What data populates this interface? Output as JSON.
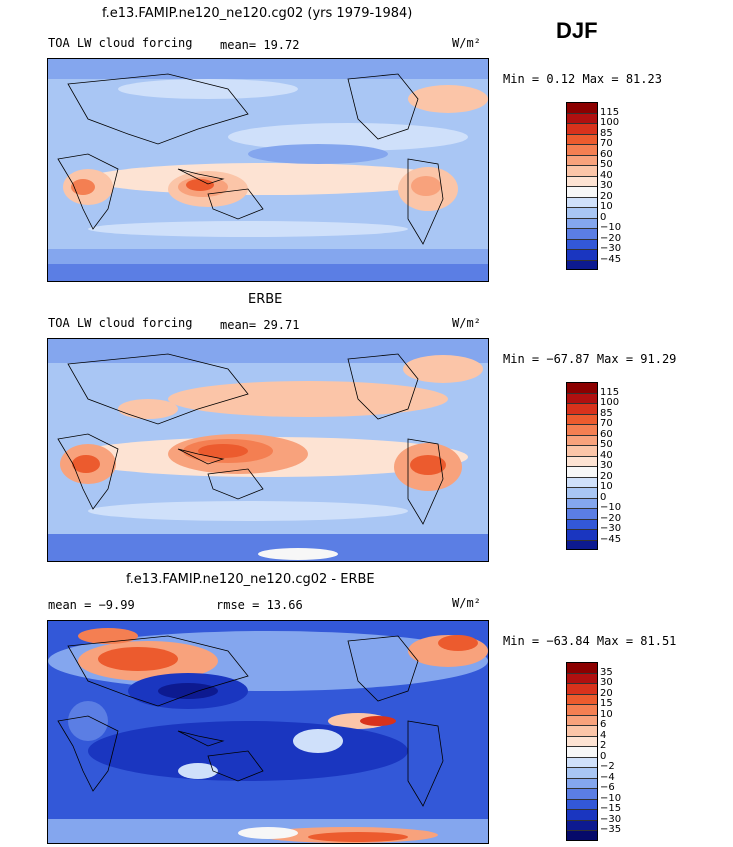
{
  "header": {
    "season": "DJF"
  },
  "panels": [
    {
      "id": "model",
      "title": "f.e13.FAMIP.ne120_ne120.cg02 (yrs 1979-1984)",
      "left_label": "TOA LW cloud forcing",
      "stat1": "mean=   19.72",
      "stat2": "",
      "units": "W/m²",
      "minmax": "Min =   0.12 Max =  81.23",
      "colorbar": {
        "labels": [
          "115",
          "100",
          "85",
          "70",
          "60",
          "50",
          "40",
          "30",
          "20",
          "10",
          "0",
          "−10",
          "−20",
          "−30",
          "−45"
        ],
        "colors": [
          "#8b0000",
          "#b01010",
          "#d8321c",
          "#ec5b2e",
          "#f47f52",
          "#f8a27c",
          "#fbc5a8",
          "#fde3d3",
          "#f7f7f7",
          "#cfe0fa",
          "#a9c6f4",
          "#84a6ee",
          "#5b7ee4",
          "#3358d8",
          "#1a36c0",
          "#0d1a90"
        ]
      }
    },
    {
      "id": "obs",
      "title": "ERBE",
      "left_label": "TOA LW cloud forcing",
      "stat1": "mean=   29.71",
      "stat2": "",
      "units": "W/m²",
      "minmax": "Min = −67.87 Max =  91.29",
      "colorbar": {
        "labels": [
          "115",
          "100",
          "85",
          "70",
          "60",
          "50",
          "40",
          "30",
          "20",
          "10",
          "0",
          "−10",
          "−20",
          "−30",
          "−45"
        ],
        "colors": [
          "#8b0000",
          "#b01010",
          "#d8321c",
          "#ec5b2e",
          "#f47f52",
          "#f8a27c",
          "#fbc5a8",
          "#fde3d3",
          "#f7f7f7",
          "#cfe0fa",
          "#a9c6f4",
          "#84a6ee",
          "#5b7ee4",
          "#3358d8",
          "#1a36c0",
          "#0d1a90"
        ]
      }
    },
    {
      "id": "diff",
      "title": "f.e13.FAMIP.ne120_ne120.cg02 - ERBE",
      "left_label": "mean =  −9.99",
      "stat1": "rmse =   13.66",
      "stat2": "",
      "units": "W/m²",
      "minmax": "Min = −63.84 Max =  81.51",
      "colorbar": {
        "labels": [
          "35",
          "30",
          "20",
          "15",
          "10",
          "6",
          "4",
          "2",
          "0",
          "−2",
          "−4",
          "−6",
          "−10",
          "−15",
          "−30",
          "−35"
        ],
        "colors": [
          "#8b0000",
          "#b01010",
          "#d8321c",
          "#ec5b2e",
          "#f47f52",
          "#f8a27c",
          "#fbc5a8",
          "#fde3d3",
          "#f7f7f7",
          "#cfe0fa",
          "#a9c6f4",
          "#84a6ee",
          "#5b7ee4",
          "#3358d8",
          "#1a36c0",
          "#0d1a90",
          "#060a6a"
        ]
      }
    }
  ]
}
